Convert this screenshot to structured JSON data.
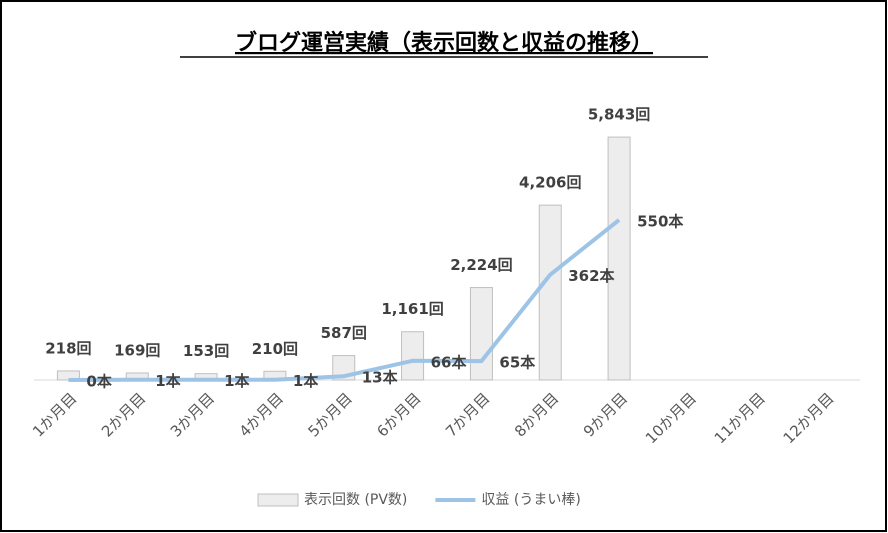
{
  "chart_data": {
    "type": "bar_line",
    "title": "ブログ運営実績（表示回数と収益の推移）",
    "categories": [
      "1か月目",
      "2か月目",
      "3か月目",
      "4か月目",
      "5か月目",
      "6か月目",
      "7か月目",
      "8か月目",
      "9か月目",
      "10か月目",
      "11か月目",
      "12か月目"
    ],
    "series": [
      {
        "name": "表示回数 (PV数)",
        "type": "bar",
        "color": "#ededed",
        "edge": "#bfbfbf",
        "values": [
          218,
          169,
          153,
          210,
          587,
          1161,
          2224,
          4206,
          5843,
          null,
          null,
          null
        ],
        "value_labels": [
          "218回",
          "169回",
          "153回",
          "210回",
          "587回",
          "1,161回",
          "2,224回",
          "4,206回",
          "5,843回",
          null,
          null,
          null
        ]
      },
      {
        "name": "収益 (うまい棒)",
        "type": "line",
        "axis": "y2",
        "color": "#9dc3e6",
        "values": [
          0,
          1,
          1,
          1,
          13,
          66,
          65,
          362,
          550,
          null,
          null,
          null
        ],
        "value_labels": [
          "0本",
          "1本",
          "1本",
          "1本",
          "13本",
          "66本",
          "65本",
          "362本",
          "550本",
          null,
          null,
          null
        ]
      }
    ],
    "ylim": [
      0,
      7000
    ],
    "y2lim": [
      0,
      1000
    ],
    "legend": "bottom"
  }
}
